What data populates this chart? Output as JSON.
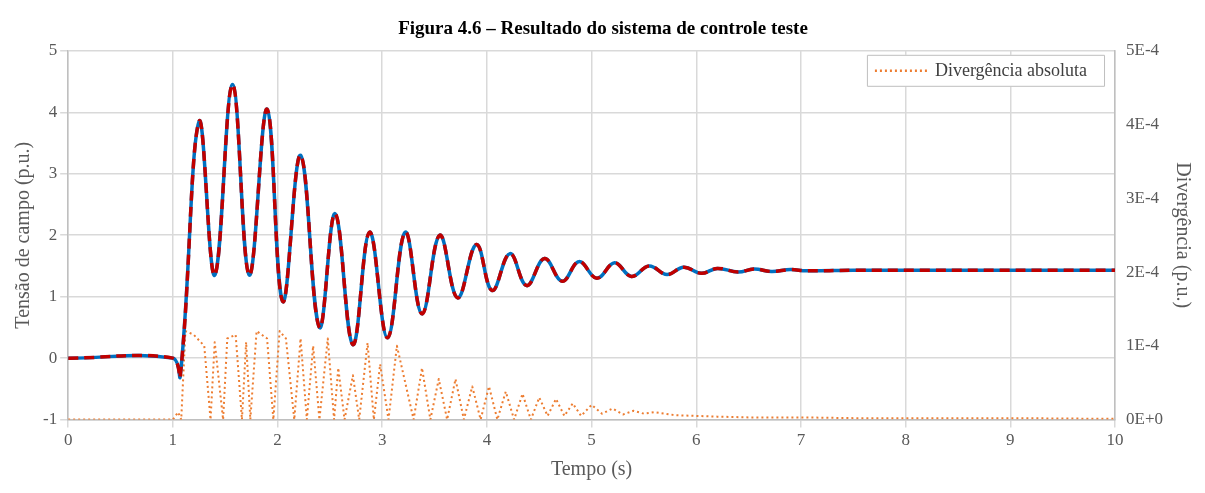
{
  "chart_data": {
    "type": "line",
    "title": "Figura 4.6 – Resultado do sistema de controle teste",
    "xlabel": "Tempo (s)",
    "ylabel": "Tensão de campo (p.u.)",
    "y2label": "Divergência (p.u.)",
    "xlim": [
      0,
      10
    ],
    "xticks": [
      0,
      1,
      2,
      3,
      4,
      5,
      6,
      7,
      8,
      9,
      10
    ],
    "ylim": [
      -1,
      5
    ],
    "yticks": [
      -1,
      0,
      1,
      2,
      3,
      4,
      5
    ],
    "y2lim": [
      0,
      0.0005
    ],
    "y2ticks": [
      {
        "value": 0,
        "label": "0E+0"
      },
      {
        "value": 0.0001,
        "label": "1E-4"
      },
      {
        "value": 0.0002,
        "label": "2E-4"
      },
      {
        "value": 0.0003,
        "label": "3E-4"
      },
      {
        "value": 0.0004,
        "label": "4E-4"
      },
      {
        "value": 0.0005,
        "label": "5E-4"
      }
    ],
    "grid": true,
    "legend": "top right",
    "marker": "none",
    "series": [
      {
        "name": "Divergência absoluta",
        "color": "#ed7d31",
        "axis": "y2",
        "line_style": "dotted",
        "x": [
          0,
          1.0,
          1.05,
          1.08,
          1.12,
          1.2,
          1.3,
          1.36,
          1.4,
          1.48,
          1.52,
          1.6,
          1.66,
          1.7,
          1.74,
          1.8,
          1.9,
          1.96,
          2.02,
          2.08,
          2.16,
          2.22,
          2.28,
          2.34,
          2.4,
          2.48,
          2.54,
          2.58,
          2.64,
          2.72,
          2.78,
          2.86,
          2.92,
          2.98,
          3.06,
          3.14,
          3.22,
          3.3,
          3.38,
          3.46,
          3.54,
          3.62,
          3.7,
          3.78,
          3.86,
          3.94,
          4.02,
          4.1,
          4.18,
          4.26,
          4.34,
          4.42,
          4.5,
          4.58,
          4.66,
          4.74,
          4.82,
          4.9,
          5.0,
          5.1,
          5.2,
          5.3,
          5.4,
          5.5,
          5.6,
          5.8,
          6.0,
          6.2,
          6.5,
          7.0,
          7.5,
          8.0,
          9.0,
          10
        ],
        "values": [
          0,
          0,
          1e-05,
          0,
          0.00012,
          0.000115,
          0.0001,
          0,
          0.000105,
          0,
          0.00011,
          0.000115,
          0,
          0.000105,
          0,
          0.00012,
          0.00011,
          0,
          0.00012,
          0.00011,
          0,
          0.00011,
          0,
          0.0001,
          0,
          0.00011,
          0,
          7e-05,
          0,
          6e-05,
          0,
          0.000104,
          0,
          7.5e-05,
          0,
          0.0001,
          5e-05,
          0,
          7e-05,
          0,
          5.5e-05,
          0,
          5.5e-05,
          0,
          4.5e-05,
          0,
          4.5e-05,
          0,
          3.8e-05,
          0,
          3.5e-05,
          0,
          3e-05,
          5e-06,
          2.8e-05,
          5e-06,
          2.2e-05,
          5e-06,
          2e-05,
          8e-06,
          1.5e-05,
          7e-06,
          1.2e-05,
          8e-06,
          1e-05,
          6e-06,
          5e-06,
          4e-06,
          3e-06,
          3e-06,
          2e-06,
          2e-06,
          2e-06,
          1e-06
        ]
      },
      {
        "color": "#0070c0",
        "line_style": "solid",
        "x": [
          0,
          1.0,
          1.07,
          1.25,
          1.4,
          1.57,
          1.73,
          1.9,
          2.05,
          2.22,
          2.4,
          2.55,
          2.72,
          2.88,
          3.05,
          3.22,
          3.38,
          3.55,
          3.72,
          3.9,
          4.05,
          4.22,
          4.38,
          4.55,
          4.72,
          4.88,
          5.05,
          5.22,
          5.38,
          5.55,
          5.72,
          5.88,
          6.05,
          6.2,
          6.4,
          6.55,
          6.72,
          6.9,
          7.05,
          7.5,
          10
        ],
        "values": [
          0,
          0,
          -0.3,
          3.85,
          1.35,
          4.45,
          1.35,
          4.05,
          0.92,
          3.3,
          0.5,
          2.35,
          0.22,
          2.05,
          0.33,
          2.05,
          0.72,
          2.0,
          0.98,
          1.85,
          1.1,
          1.7,
          1.18,
          1.62,
          1.25,
          1.57,
          1.3,
          1.55,
          1.33,
          1.5,
          1.36,
          1.48,
          1.38,
          1.46,
          1.4,
          1.45,
          1.41,
          1.44,
          1.42,
          1.43,
          1.43
        ]
      },
      {
        "color": "#c00000",
        "line_style": "dashed",
        "x": [
          0,
          1.0,
          1.07,
          1.25,
          1.4,
          1.57,
          1.73,
          1.9,
          2.05,
          2.22,
          2.4,
          2.55,
          2.72,
          2.88,
          3.05,
          3.22,
          3.38,
          3.55,
          3.72,
          3.9,
          4.05,
          4.22,
          4.38,
          4.55,
          4.72,
          4.88,
          5.05,
          5.22,
          5.38,
          5.55,
          5.72,
          5.88,
          6.05,
          6.2,
          6.4,
          6.55,
          6.72,
          6.9,
          7.05,
          7.5,
          10
        ],
        "values": [
          0,
          0,
          -0.3,
          3.85,
          1.35,
          4.45,
          1.35,
          4.05,
          0.92,
          3.3,
          0.5,
          2.35,
          0.22,
          2.05,
          0.33,
          2.05,
          0.72,
          2.0,
          0.98,
          1.85,
          1.1,
          1.7,
          1.18,
          1.62,
          1.25,
          1.57,
          1.3,
          1.55,
          1.33,
          1.5,
          1.36,
          1.48,
          1.38,
          1.46,
          1.4,
          1.45,
          1.41,
          1.44,
          1.42,
          1.43,
          1.43
        ]
      }
    ]
  }
}
